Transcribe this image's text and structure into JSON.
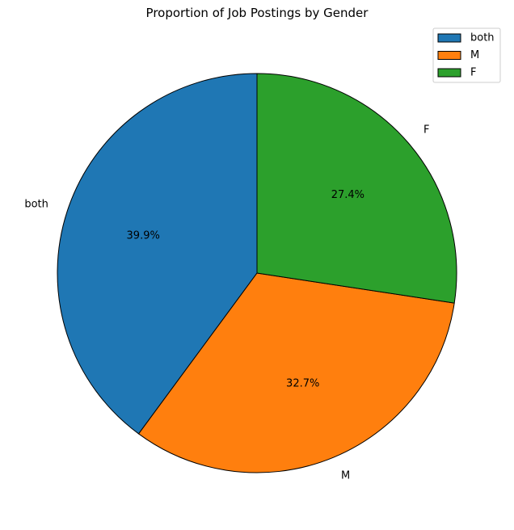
{
  "chart_data": {
    "type": "pie",
    "title": "Proportion of Job Postings by Gender",
    "categories": [
      "both",
      "M",
      "F"
    ],
    "values": [
      39.9,
      32.7,
      27.4
    ],
    "value_labels": [
      "39.9%",
      "32.7%",
      "27.4%"
    ],
    "colors": [
      "#1f77b4",
      "#ff7f0e",
      "#2ca02c"
    ],
    "start_angle_deg": 90,
    "direction": "counterclockwise",
    "legend": {
      "placement": "top-right",
      "entries": [
        "both",
        "M",
        "F"
      ]
    },
    "edge_color": "#000000"
  }
}
